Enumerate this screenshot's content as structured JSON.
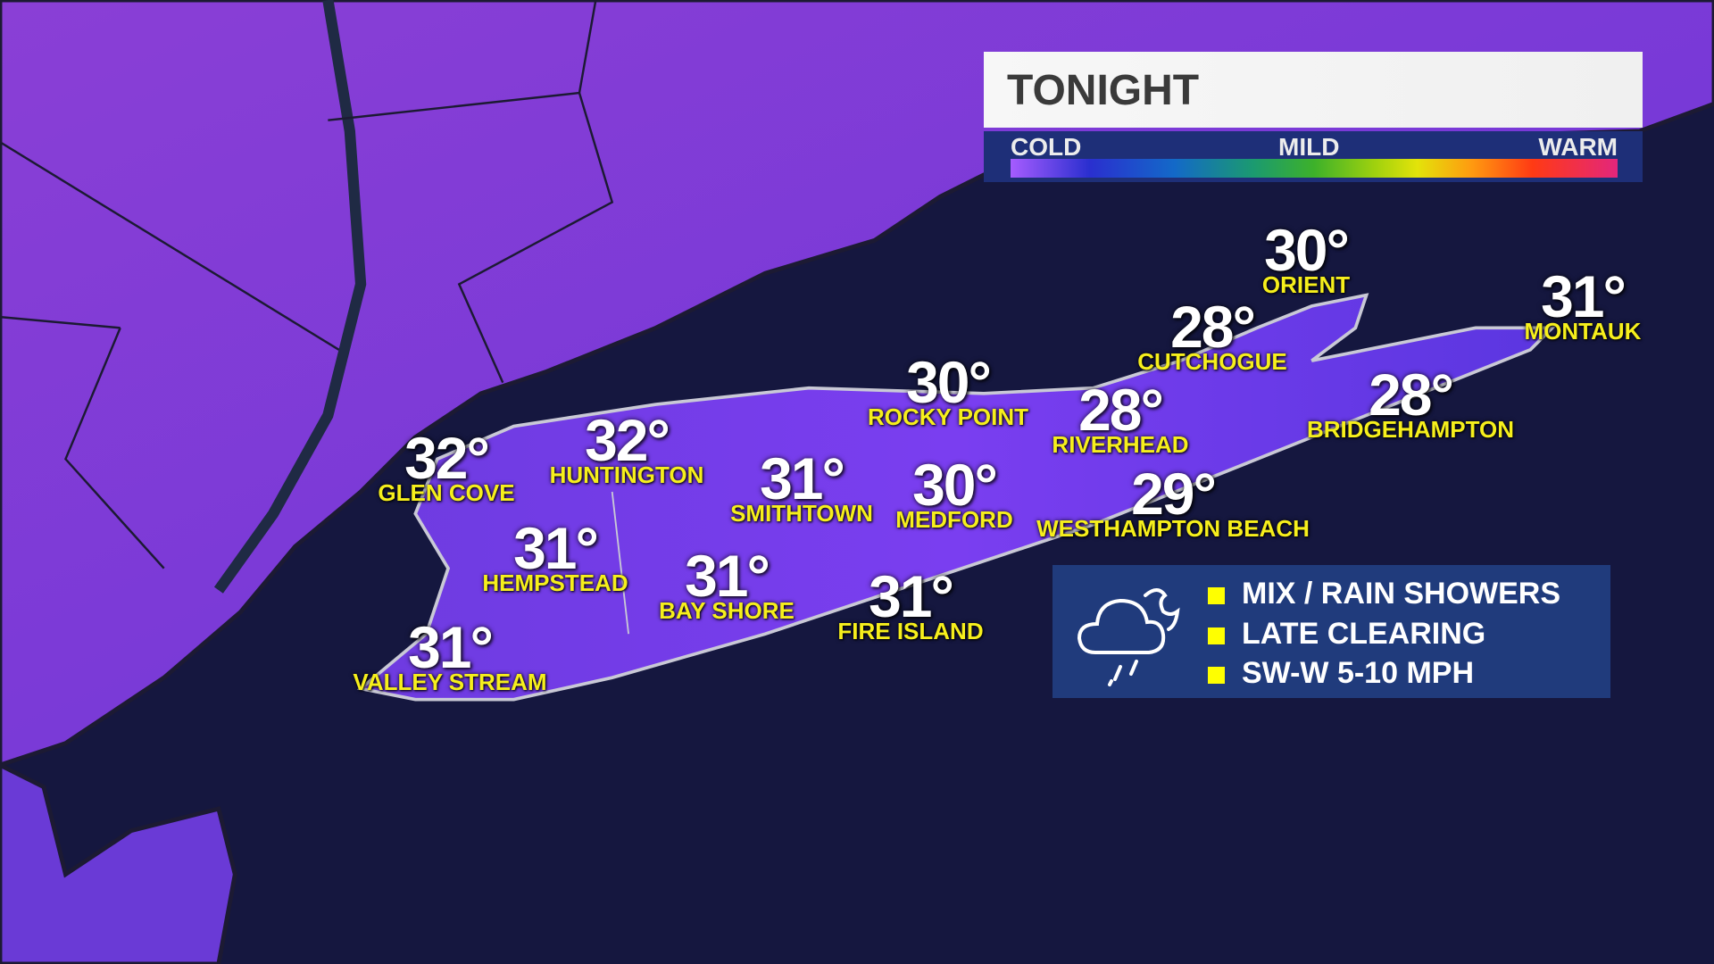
{
  "header": {
    "title": "TONIGHT"
  },
  "temperature_scale": {
    "cold_label": "COLD",
    "mild_label": "MILD",
    "warm_label": "WARM",
    "colors": [
      "#a65cff",
      "#2a2fcf",
      "#1369c8",
      "#1b9a70",
      "#3db12a",
      "#9fd10e",
      "#e3e30a",
      "#ff9a10",
      "#ff3a14",
      "#e3267c"
    ]
  },
  "cities": [
    {
      "name": "GLEN COVE",
      "temp": "32°"
    },
    {
      "name": "HUNTINGTON",
      "temp": "32°"
    },
    {
      "name": "SMITHTOWN",
      "temp": "31°"
    },
    {
      "name": "ROCKY POINT",
      "temp": "30°"
    },
    {
      "name": "MEDFORD",
      "temp": "30°"
    },
    {
      "name": "RIVERHEAD",
      "temp": "28°"
    },
    {
      "name": "CUTCHOGUE",
      "temp": "28°"
    },
    {
      "name": "ORIENT",
      "temp": "30°"
    },
    {
      "name": "MONTAUK",
      "temp": "31°"
    },
    {
      "name": "BRIDGEHAMPTON",
      "temp": "28°"
    },
    {
      "name": "WESTHAMPTON BEACH",
      "temp": "29°"
    },
    {
      "name": "HEMPSTEAD",
      "temp": "31°"
    },
    {
      "name": "BAY SHORE",
      "temp": "31°"
    },
    {
      "name": "FIRE ISLAND",
      "temp": "31°"
    },
    {
      "name": "VALLEY STREAM",
      "temp": "31°"
    }
  ],
  "conditions": {
    "icon": "cloud-moon-rain-icon",
    "bullet_color": "#ffff00",
    "items": [
      "MIX / RAIN SHOWERS",
      "LATE CLEARING",
      "SW-W 5-10 MPH"
    ]
  },
  "colors": {
    "land": "#7a3de0",
    "water": "#15173f",
    "label": "#f6ef1c"
  }
}
